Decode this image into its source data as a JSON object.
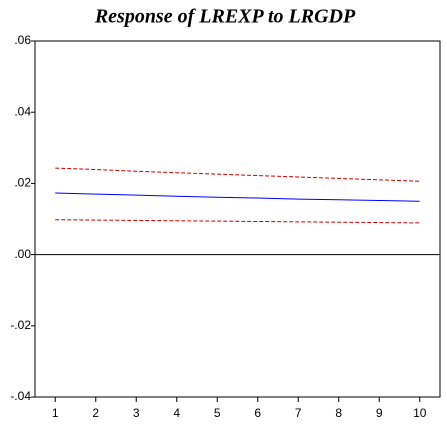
{
  "chart_data": {
    "type": "line",
    "title": "Response of LREXP to LRGDP",
    "x": [
      1,
      2,
      3,
      4,
      5,
      6,
      7,
      8,
      9,
      10
    ],
    "xlim": [
      0.5,
      10.5
    ],
    "xticks": [
      1,
      2,
      3,
      4,
      5,
      6,
      7,
      8,
      9,
      10
    ],
    "ylim": [
      -0.04,
      0.06
    ],
    "yticks": [
      {
        "value": 0.06,
        "label": ".06"
      },
      {
        "value": 0.04,
        "label": ".04"
      },
      {
        "value": 0.02,
        "label": ".02"
      },
      {
        "value": 0,
        "label": ".00"
      },
      {
        "value": -0.02,
        "label": "-.02"
      },
      {
        "value": -0.04,
        "label": "-.04"
      }
    ],
    "zero_line": true,
    "grid": false,
    "series": [
      {
        "color": "#0000ff",
        "dashed": false,
        "values": [
          0.0173,
          0.017,
          0.0167,
          0.0164,
          0.0161,
          0.0159,
          0.0156,
          0.0154,
          0.0152,
          0.015
        ]
      },
      {
        "color": "#cc0000",
        "dashed": true,
        "values": [
          0.0243,
          0.0239,
          0.0234,
          0.023,
          0.0226,
          0.0222,
          0.0218,
          0.0214,
          0.021,
          0.0206
        ]
      },
      {
        "color": "#cc0000",
        "dashed": true,
        "values": [
          0.0098,
          0.0097,
          0.0096,
          0.0095,
          0.0094,
          0.0093,
          0.0092,
          0.0091,
          0.009,
          0.0089
        ]
      }
    ]
  }
}
